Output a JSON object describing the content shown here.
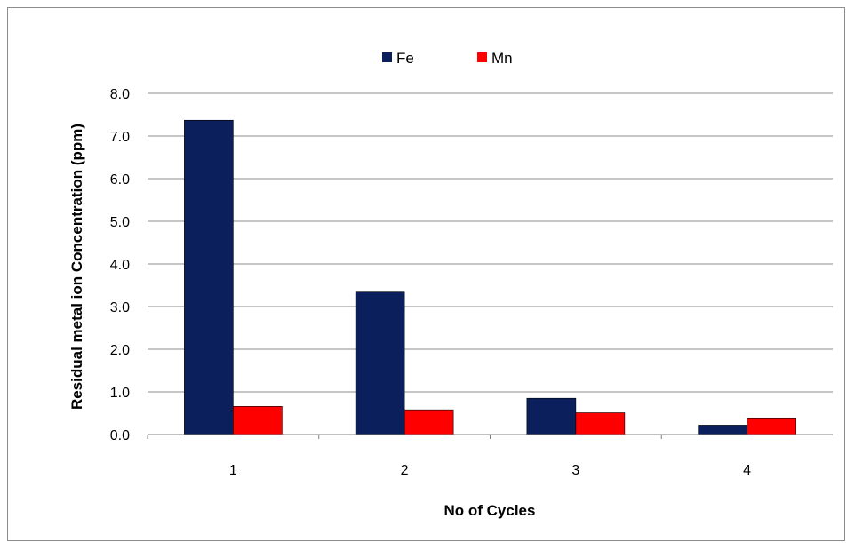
{
  "chart_data": {
    "type": "bar",
    "categories": [
      "1",
      "2",
      "3",
      "4"
    ],
    "series": [
      {
        "name": "Fe",
        "color": "#0a1f5c",
        "values": [
          7.37,
          3.34,
          0.85,
          0.22
        ]
      },
      {
        "name": "Mn",
        "color": "#ff0000",
        "values": [
          0.66,
          0.58,
          0.51,
          0.39
        ]
      }
    ],
    "title": "",
    "xlabel": "No of Cycles",
    "ylabel": "Residual metal ion Concentration (ppm)",
    "ylim": [
      0,
      8
    ],
    "yticks": [
      "0.0",
      "1.0",
      "2.0",
      "3.0",
      "4.0",
      "5.0",
      "6.0",
      "7.0",
      "8.0"
    ],
    "grid": true,
    "legend_position": "top"
  }
}
